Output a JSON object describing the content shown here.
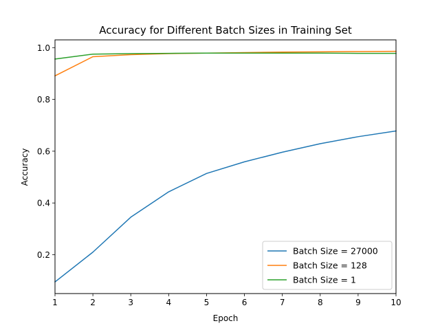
{
  "chart_data": {
    "type": "line",
    "title": "Accuracy for Different Batch Sizes in Training Set",
    "xlabel": "Epoch",
    "ylabel": "Accuracy",
    "x": [
      1,
      2,
      3,
      4,
      5,
      6,
      7,
      8,
      9,
      10
    ],
    "xlim": [
      1,
      10
    ],
    "ylim": [
      0.05,
      1.03
    ],
    "xticks": [
      "1",
      "2",
      "3",
      "4",
      "5",
      "6",
      "7",
      "8",
      "9",
      "10"
    ],
    "yticks": [
      "0.2",
      "0.4",
      "0.6",
      "0.8",
      "1.0"
    ],
    "ytick_values": [
      0.2,
      0.4,
      0.6,
      0.8,
      1.0
    ],
    "grid": false,
    "legend_position": "lower-right",
    "series": [
      {
        "name": "Batch Size = 27000",
        "color": "#1f77b4",
        "values": [
          0.095,
          0.21,
          0.345,
          0.443,
          0.514,
          0.559,
          0.596,
          0.629,
          0.656,
          0.678
        ]
      },
      {
        "name": "Batch Size = 128",
        "color": "#ff7f0e",
        "values": [
          0.891,
          0.965,
          0.973,
          0.977,
          0.979,
          0.981,
          0.983,
          0.984,
          0.985,
          0.986
        ]
      },
      {
        "name": "Batch Size = 1",
        "color": "#2ca02c",
        "values": [
          0.956,
          0.975,
          0.977,
          0.978,
          0.979,
          0.979,
          0.979,
          0.979,
          0.978,
          0.978
        ]
      }
    ]
  }
}
